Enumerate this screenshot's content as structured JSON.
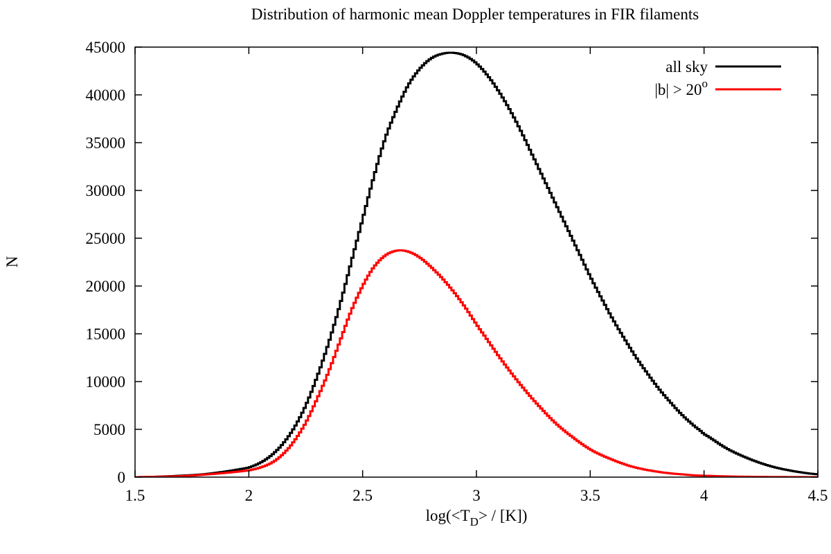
{
  "chart_data": {
    "type": "line",
    "style": "step",
    "title": "Distribution of harmonic mean Doppler temperatures in FIR filaments",
    "xlabel": {
      "prefix": "log(<T",
      "sub": "D",
      "suffix": "> / [K])"
    },
    "ylabel": "N",
    "xlim": [
      1.5,
      4.5
    ],
    "ylim": [
      0,
      45000
    ],
    "xticks": [
      1.5,
      2,
      2.5,
      3,
      3.5,
      4,
      4.5
    ],
    "yticks": [
      0,
      5000,
      10000,
      15000,
      20000,
      25000,
      30000,
      35000,
      40000,
      45000
    ],
    "grid": false,
    "legend_position": "top-right",
    "series": [
      {
        "name": "all sky",
        "legend_main": "all sky",
        "color": "#000000",
        "x": [
          1.5,
          1.6,
          1.7,
          1.8,
          1.9,
          2.0,
          2.05,
          2.1,
          2.15,
          2.2,
          2.25,
          2.3,
          2.35,
          2.4,
          2.45,
          2.5,
          2.55,
          2.6,
          2.65,
          2.7,
          2.75,
          2.8,
          2.85,
          2.9,
          2.95,
          3.0,
          3.05,
          3.1,
          3.15,
          3.2,
          3.25,
          3.3,
          3.35,
          3.4,
          3.45,
          3.5,
          3.55,
          3.6,
          3.65,
          3.7,
          3.75,
          3.8,
          3.85,
          3.9,
          3.95,
          4.0,
          4.1,
          4.2,
          4.3,
          4.4,
          4.5
        ],
        "y": [
          0,
          50,
          150,
          300,
          600,
          1000,
          1500,
          2300,
          3500,
          5200,
          7500,
          10500,
          14000,
          18000,
          22500,
          27000,
          31500,
          35500,
          38500,
          41000,
          42700,
          43800,
          44300,
          44400,
          44100,
          43300,
          42000,
          40300,
          38300,
          36000,
          33500,
          31000,
          28500,
          26000,
          23500,
          21000,
          18700,
          16500,
          14500,
          12600,
          10900,
          9300,
          7900,
          6600,
          5500,
          4500,
          3000,
          1900,
          1100,
          600,
          300
        ]
      },
      {
        "name": "|b| > 20°",
        "legend_main": "|b| > 20",
        "legend_sup": "o",
        "color": "#ff0000",
        "x": [
          1.5,
          1.6,
          1.7,
          1.8,
          1.9,
          2.0,
          2.05,
          2.1,
          2.15,
          2.2,
          2.25,
          2.3,
          2.35,
          2.4,
          2.45,
          2.5,
          2.55,
          2.6,
          2.65,
          2.7,
          2.75,
          2.8,
          2.85,
          2.9,
          2.95,
          3.0,
          3.05,
          3.1,
          3.15,
          3.2,
          3.25,
          3.3,
          3.35,
          3.4,
          3.45,
          3.5,
          3.55,
          3.6,
          3.65,
          3.7,
          3.75,
          3.8,
          3.85,
          3.9,
          3.95,
          4.0,
          4.1,
          4.2,
          4.3,
          4.4,
          4.5
        ],
        "y": [
          0,
          40,
          100,
          250,
          450,
          700,
          1000,
          1500,
          2400,
          3800,
          5700,
          8200,
          11000,
          14200,
          17400,
          20000,
          22000,
          23200,
          23700,
          23600,
          23000,
          22000,
          20800,
          19400,
          17800,
          16000,
          14300,
          12600,
          11000,
          9500,
          8100,
          6800,
          5600,
          4600,
          3700,
          2900,
          2300,
          1800,
          1350,
          1000,
          750,
          550,
          400,
          300,
          200,
          150,
          80,
          40,
          20,
          10,
          0
        ]
      }
    ]
  }
}
